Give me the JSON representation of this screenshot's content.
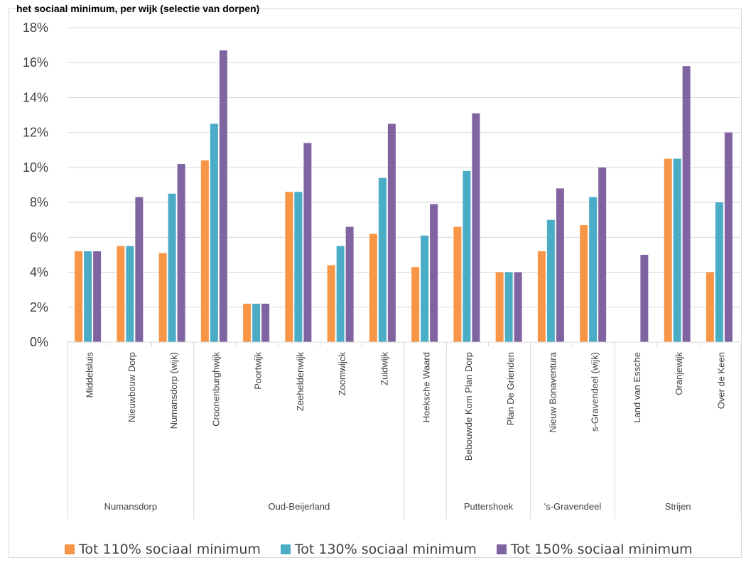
{
  "title": "het sociaal minimum, per wijk (selectie van dorpen)",
  "colors": {
    "s110": "#F79646",
    "s130": "#4BACC6",
    "s150": "#8064A2",
    "grid": "#d9d9d9",
    "text": "#404040"
  },
  "chart_data": {
    "type": "bar",
    "title": "het sociaal minimum, per wijk (selectie van dorpen)",
    "xlabel": "",
    "ylabel": "",
    "ylim": [
      0,
      18
    ],
    "y_ticks": [
      0,
      2,
      4,
      6,
      8,
      10,
      12,
      14,
      16,
      18
    ],
    "y_tick_labels": [
      "0%",
      "2%",
      "4%",
      "6%",
      "8%",
      "10%",
      "12%",
      "14%",
      "16%",
      "18%"
    ],
    "grid": true,
    "legend_position": "bottom",
    "categories": [
      "Middelsluis",
      "Nieuwbouw Dorp",
      "Numansdorp (wijk)",
      "Croonenburghwijk",
      "Poortwijk",
      "Zeeheldenwijk",
      "Zoomwijck",
      "Zuidwijk",
      "Hoeksche Waard",
      "Bebouwde Kom Plan Dorp",
      "Plan De Grienden",
      "Nieuw Bonaventura",
      "s-Gravendeel (wijk)",
      "Land van Essche",
      "Oranjewijk",
      "Over de Keen"
    ],
    "groups": [
      {
        "label": "Numansdorp",
        "count": 3
      },
      {
        "label": "Oud-Beijerland",
        "count": 5
      },
      {
        "label": "",
        "count": 1
      },
      {
        "label": "Puttershoek",
        "count": 2
      },
      {
        "label": "'s-Gravendeel",
        "count": 2
      },
      {
        "label": "Strijen",
        "count": 3
      }
    ],
    "series": [
      {
        "name": "Tot 110% sociaal minimum",
        "color": "#F79646",
        "values": [
          5.2,
          5.5,
          5.1,
          10.4,
          2.2,
          8.6,
          4.4,
          6.2,
          4.3,
          6.6,
          4.0,
          5.2,
          6.7,
          null,
          10.5,
          4.0
        ]
      },
      {
        "name": "Tot 130% sociaal minimum",
        "color": "#4BACC6",
        "values": [
          5.2,
          5.5,
          8.5,
          12.5,
          2.2,
          8.6,
          5.5,
          9.4,
          6.1,
          9.8,
          4.0,
          7.0,
          8.3,
          null,
          10.5,
          8.0
        ]
      },
      {
        "name": "Tot 150% sociaal minimum",
        "color": "#8064A2",
        "values": [
          5.2,
          8.3,
          10.2,
          16.7,
          2.2,
          11.4,
          6.6,
          12.5,
          7.9,
          13.1,
          4.0,
          8.8,
          10.0,
          5.0,
          15.8,
          12.0
        ]
      }
    ]
  }
}
